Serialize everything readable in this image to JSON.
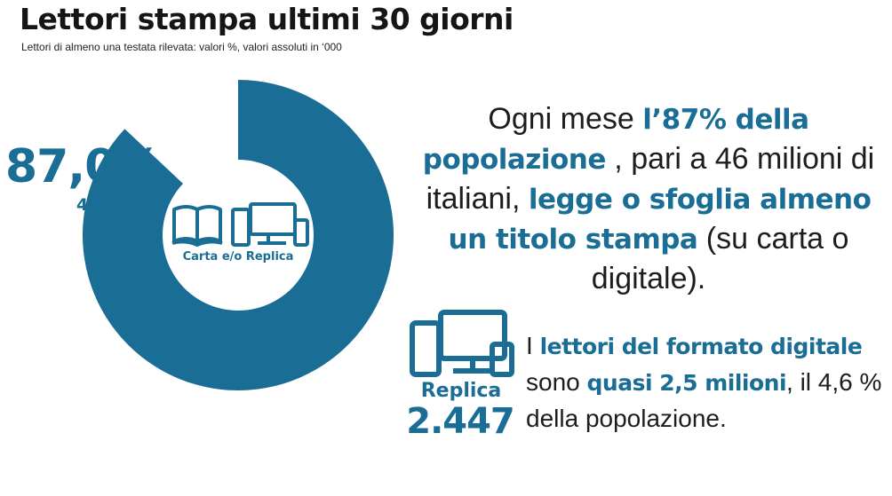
{
  "header": {
    "title": "Lettori stampa ultimi 30 giorni",
    "subtitle": "Lettori di almeno una testata rilevata: valori %, valori assoluti in ‘000"
  },
  "colors": {
    "accent": "#1a6d94",
    "remainder": "#ffffff",
    "text": "#1d1d1d"
  },
  "chart_data": {
    "type": "pie",
    "title": "Lettori stampa ultimi 30 giorni",
    "slices": [
      {
        "label": "Carta e/o Replica",
        "value": 87.0,
        "display_value": "87,0%",
        "absolute_display": "46.017"
      },
      {
        "label": "",
        "value": 13.0
      }
    ],
    "center_label": "Carta e/o Replica"
  },
  "donut": {
    "pct_label": "87,0%",
    "abs_label": "46.017",
    "center_label": "Carta e/o Replica",
    "center_icons": [
      "book-icon",
      "devices-icon"
    ]
  },
  "statement": {
    "t1": "Ogni mese ",
    "b1": "l’87% della popolazione",
    "t2": " , pari a 46 milioni di italiani, ",
    "b2": "legge o sfoglia almeno un titolo  stampa",
    "t3": " (su carta o digitale)."
  },
  "replica": {
    "icon": "devices-icon",
    "label": "Replica",
    "value": "2.447"
  },
  "digital_statement": {
    "t1": "I ",
    "b1": "lettori del formato digitale",
    "t2": " sono ",
    "b2": "quasi 2,5 milioni",
    "t3": ", il 4,6 % della popolazione."
  }
}
